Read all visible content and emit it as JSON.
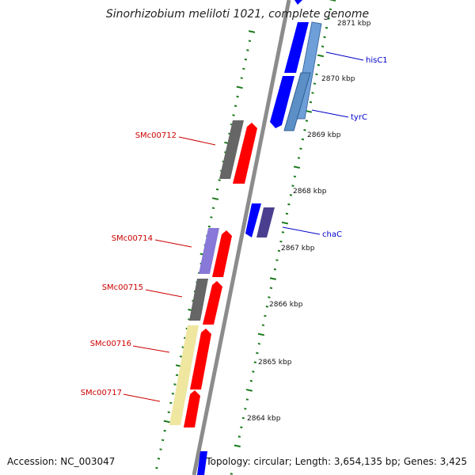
{
  "title": "Sinorhizobium meliloti 1021, complete genome",
  "footer": {
    "accession": "Accession: NC_003047",
    "summary": "Topology: circular; Length: 3,654,135 bp; Genes: 3,425"
  },
  "colors": {
    "forward_cds": "#0000ff",
    "reverse_cds": "#ff0000",
    "backbone": "#8c8c8c",
    "tick": "#1b7a1b",
    "label_forward": "#0000cc",
    "label_reverse": "#cc0000"
  },
  "scale_ticks": [
    {
      "label": "2871 kbp"
    },
    {
      "label": "2870 kbp"
    },
    {
      "label": "2869 kbp"
    },
    {
      "label": "2868 kbp"
    },
    {
      "label": "2867 kbp"
    },
    {
      "label": "2866 kbp"
    },
    {
      "label": "2865 kbp"
    },
    {
      "label": "2864 kbp"
    }
  ],
  "genes_forward": [
    {
      "label": "hisC1",
      "color": "#6f9fd8"
    },
    {
      "label": "tyrC",
      "color": "#5b8fc6"
    },
    {
      "label": "chaC",
      "color": "#4a3f8f"
    }
  ],
  "genes_reverse": [
    {
      "label": "SMc00712",
      "color": "#666666"
    },
    {
      "label": "SMc00714",
      "color": "#8878d8"
    },
    {
      "label": "SMc00715",
      "color": "#666666"
    },
    {
      "label": "SMc00716",
      "color": "#efe6a0"
    },
    {
      "label": "SMc00717",
      "color": "#efe6a0"
    }
  ]
}
